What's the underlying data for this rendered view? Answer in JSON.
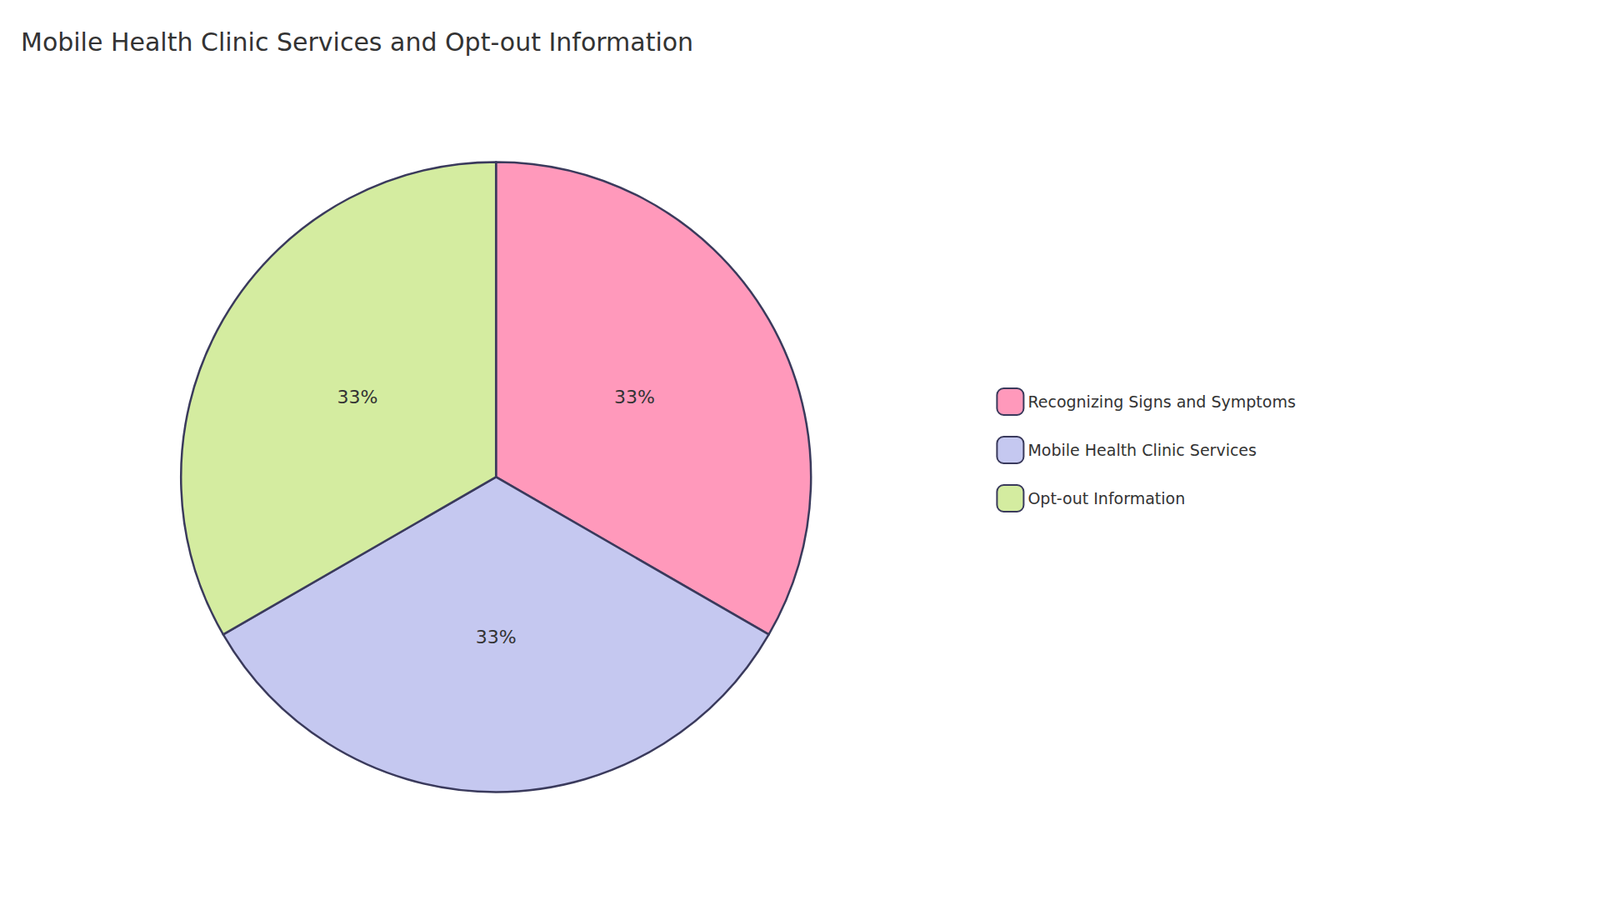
{
  "chart_data": {
    "type": "pie",
    "title": "Mobile Health Clinic Services and Opt-out Information",
    "categories": [
      "Recognizing Signs and Symptoms",
      "Mobile Health Clinic Services",
      "Opt-out Information"
    ],
    "values": [
      33,
      33,
      33
    ],
    "value_labels": [
      "33%",
      "33%",
      "33%"
    ],
    "colors": [
      "#FF99BB",
      "#C5C8F0",
      "#D4ECA0"
    ],
    "data_labels": true,
    "legend": "right"
  }
}
